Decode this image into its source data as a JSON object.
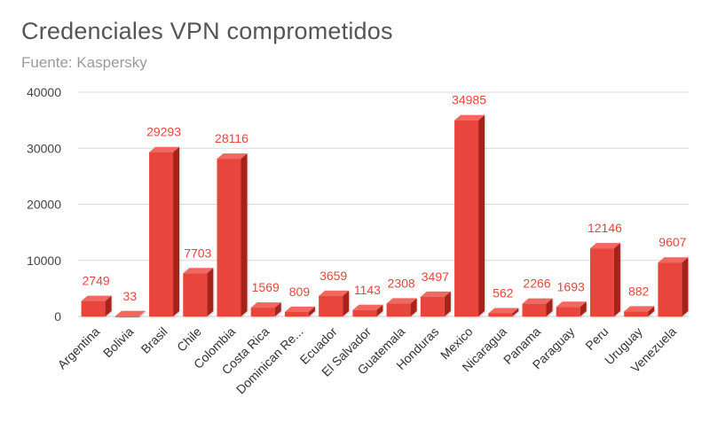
{
  "chart_data": {
    "type": "bar",
    "title": "Credenciales VPN comprometidos",
    "subtitle": "Fuente: Kaspersky",
    "xlabel": "",
    "ylabel": "",
    "ylim": [
      0,
      40000
    ],
    "yticks": [
      0,
      10000,
      20000,
      30000,
      40000
    ],
    "grid": true,
    "legend": "none",
    "bar_color": "#e8453c",
    "label_color": "#e8453c",
    "categories": [
      "Argentina",
      "Bolivia",
      "Brasil",
      "Chile",
      "Colombia",
      "Costa Rica",
      "Dominican Re...",
      "Ecuador",
      "El Salvador",
      "Guatemala",
      "Honduras",
      "Mexico",
      "Nicaragua",
      "Panama",
      "Paraguay",
      "Peru",
      "Uruguay",
      "Venezuela"
    ],
    "values": [
      2749,
      33,
      29293,
      7703,
      28116,
      1569,
      809,
      3659,
      1143,
      2308,
      3497,
      34985,
      562,
      2266,
      1693,
      12146,
      882,
      9607
    ]
  }
}
